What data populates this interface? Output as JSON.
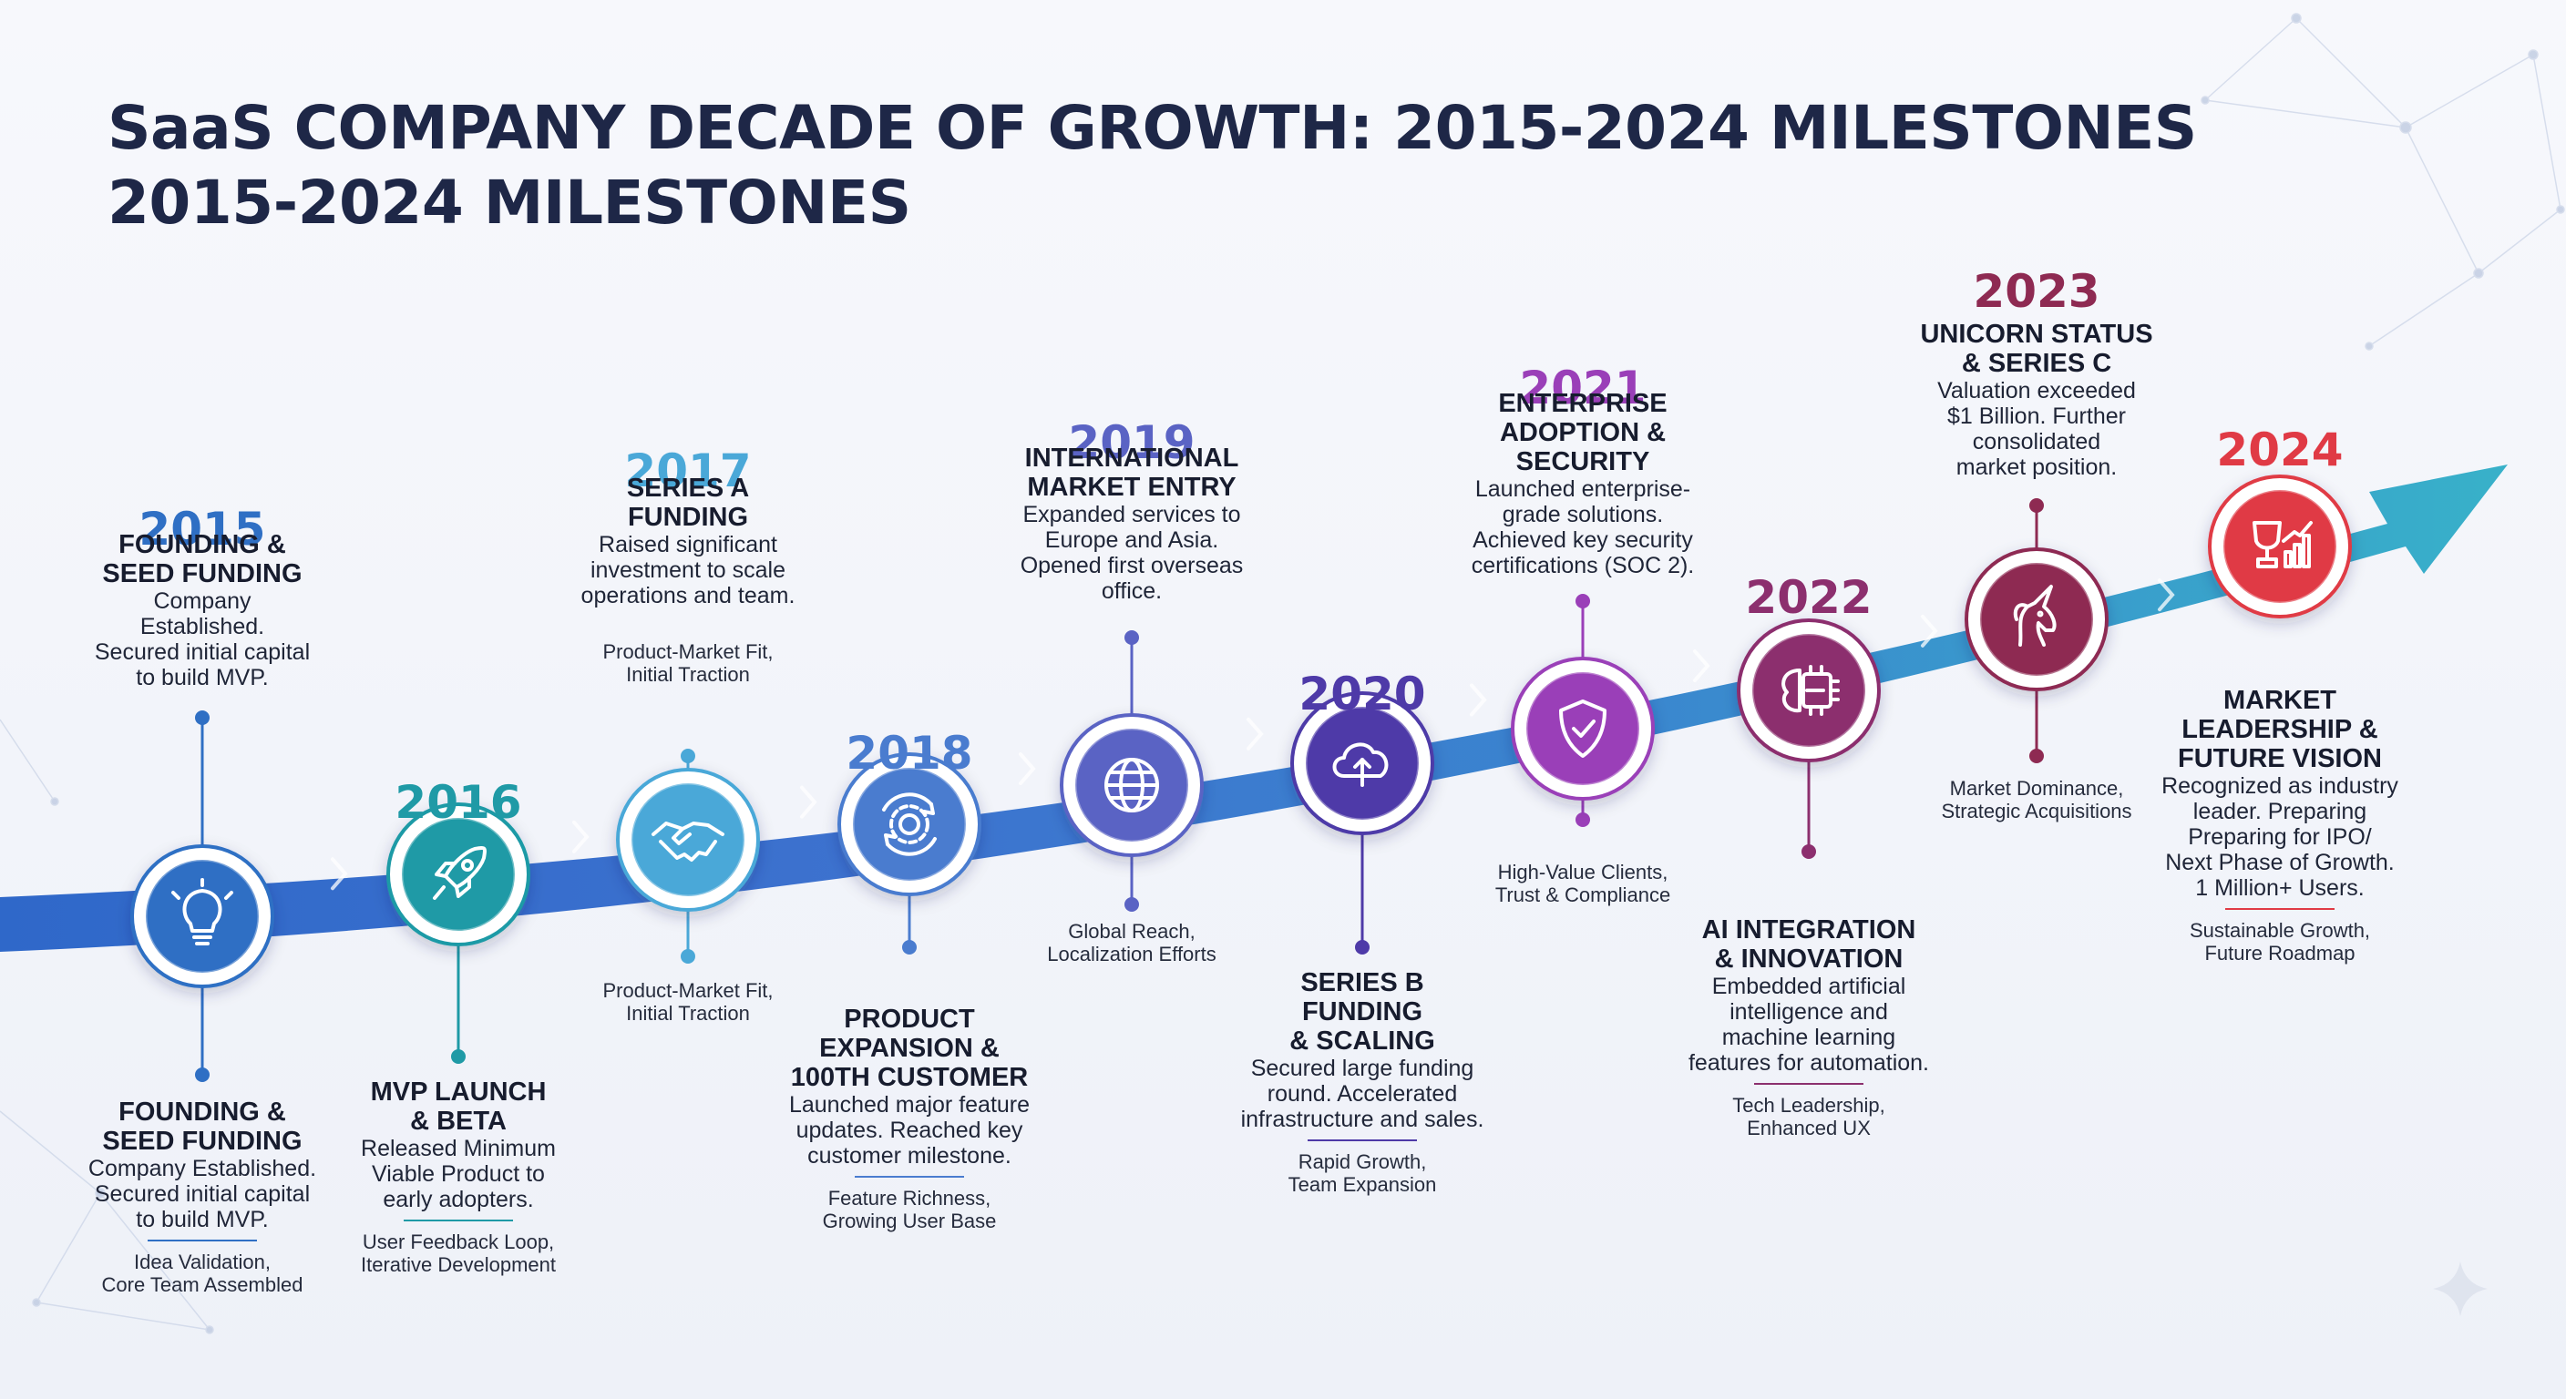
{
  "title": {
    "line1": "SaaS COMPANY DECADE OF GROWTH: 2015-2024 MILESTONES",
    "line2": "2015-2024 MILESTONES"
  },
  "milestones": [
    {
      "year": "2015",
      "color": "#2f6fc4",
      "icon": "lightbulb-icon",
      "top_heading": "FOUNDING &\nSEED FUNDING",
      "top_text": "Company\nEstablished.\nSecured initial capital\nto build MVP.",
      "bottom_heading": "FOUNDING &\nSEED FUNDING",
      "bottom_text": "Company Established.\nSecured initial capital\nto build MVP.",
      "tag": "Idea Validation,\nCore Team Assembled"
    },
    {
      "year": "2016",
      "color": "#1f9aa6",
      "icon": "rocket-icon",
      "bottom_heading": "MVP LAUNCH\n& BETA",
      "bottom_text": "Released Minimum\nViable Product to\nearly adopters.",
      "tag": "User Feedback Loop,\nIterative Development"
    },
    {
      "year": "2017",
      "color": "#4aa8d8",
      "icon": "handshake-icon",
      "top_heading": "SERIES A\nFUNDING",
      "top_text": "Raised significant\ninvestment to scale\noperations and team.",
      "top_tag": "Product-Market Fit,\nInitial Traction",
      "tag": "Product-Market Fit,\nInitial Traction"
    },
    {
      "year": "2018",
      "color": "#4a7ccf",
      "icon": "gear-cycle-icon",
      "bottom_heading": "PRODUCT\nEXPANSION &\n100TH CUSTOMER",
      "bottom_text": "Launched major feature\nupdates. Reached key\ncustomer milestone.",
      "tag": "Feature Richness,\nGrowing User Base"
    },
    {
      "year": "2019",
      "color": "#5a63c4",
      "icon": "globe-icon",
      "top_heading": "INTERNATIONAL\nMARKET ENTRY",
      "top_text": "Expanded services to\nEurope and Asia.\nOpened first overseas\noffice.",
      "tag": "Global Reach,\nLocalization Efforts"
    },
    {
      "year": "2020",
      "color": "#4e3aa8",
      "icon": "cloud-upload-icon",
      "bottom_heading": "SERIES B\nFUNDING\n& SCALING",
      "bottom_text": "Secured large funding\nround. Accelerated\ninfrastructure and sales.",
      "tag": "Rapid Growth,\nTeam Expansion"
    },
    {
      "year": "2021",
      "color": "#9a3fb8",
      "icon": "shield-check-icon",
      "top_heading": "ENTERPRISE\nADOPTION &\nSECURITY",
      "top_text": "Launched enterprise-\ngrade solutions.\nAchieved key security\ncertifications (SOC 2).",
      "tag": "High-Value Clients,\nTrust & Compliance"
    },
    {
      "year": "2022",
      "color": "#8c2f6e",
      "icon": "ai-chip-icon",
      "bottom_heading": "AI INTEGRATION\n& INNOVATION",
      "bottom_text": "Embedded artificial\nintelligence and\nmachine learning\nfeatures for automation.",
      "tag": "Tech Leadership,\nEnhanced UX"
    },
    {
      "year": "2023",
      "color": "#8e2a52",
      "icon": "unicorn-icon",
      "top_heading": "UNICORN STATUS\n& SERIES C",
      "top_text": "Valuation exceeded\n$1 Billion. Further\nconsolidated\nmarket position.",
      "tag": "Market Dominance,\nStrategic Acquisitions"
    },
    {
      "year": "2024",
      "color": "#e03a45",
      "icon": "trophy-growth-icon",
      "bottom_heading": "MARKET\nLEADERSHIP &\nFUTURE VISION",
      "bottom_text": "Recognized as industry\nleader. Preparing\nPreparing for IPO/\nNext Phase of Growth.\n1 Million+ Users.",
      "tag": "Sustainable Growth,\nFuture Roadmap"
    }
  ]
}
